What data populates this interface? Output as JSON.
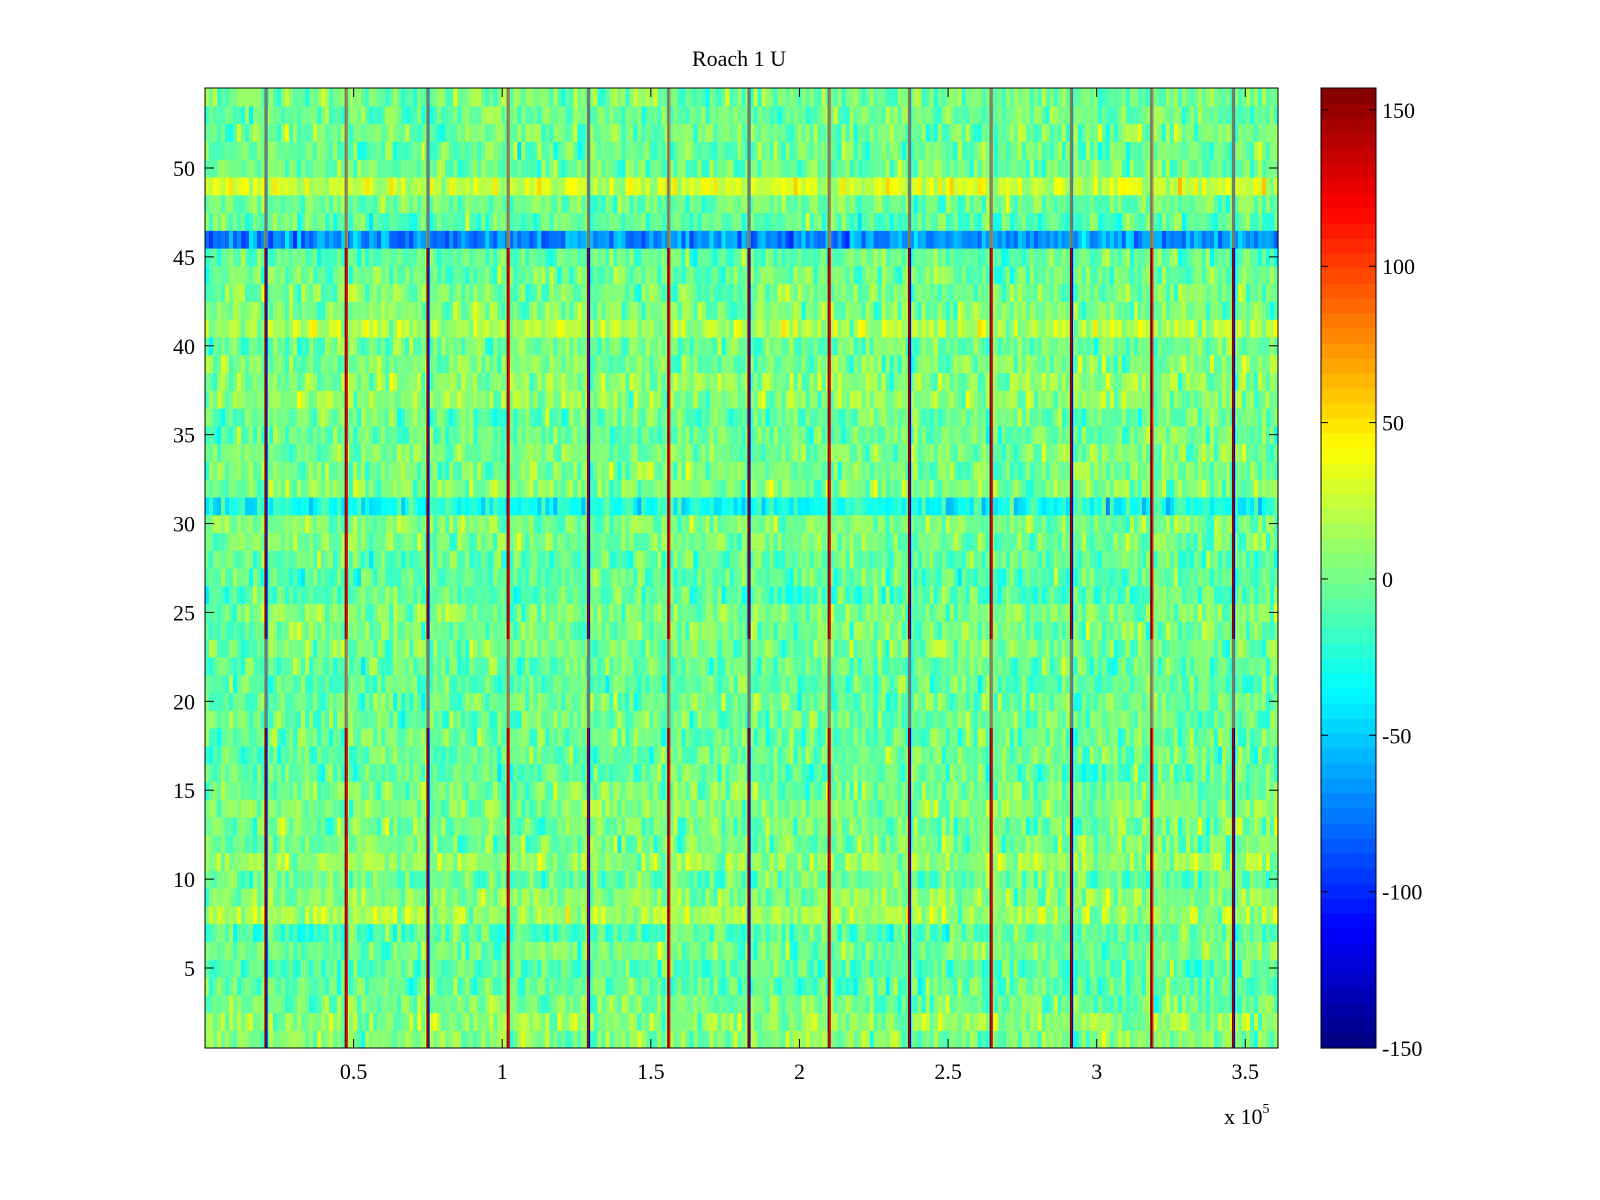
{
  "chart_data": {
    "type": "heatmap",
    "title": "Roach 1 U",
    "colormap": "jet",
    "x": {
      "range": [
        0,
        361000
      ],
      "ticks": [
        50000,
        100000,
        150000,
        200000,
        250000,
        300000,
        350000
      ],
      "tick_labels": [
        "0.5",
        "1",
        "1.5",
        "2",
        "2.5",
        "3",
        "3.5"
      ],
      "multiplier": {
        "base": "x 10",
        "exponent": "5"
      }
    },
    "y": {
      "range": [
        0.5,
        54.5
      ],
      "ticks": [
        5,
        10,
        15,
        20,
        25,
        30,
        35,
        40,
        45,
        50
      ],
      "tick_labels": [
        "5",
        "10",
        "15",
        "20",
        "25",
        "30",
        "35",
        "40",
        "45",
        "50"
      ]
    },
    "colorbar": {
      "range": [
        -150,
        157
      ],
      "ticks": [
        -150,
        -100,
        -50,
        0,
        50,
        100,
        150
      ],
      "tick_labels": [
        "-150",
        "-100",
        "-50",
        "0",
        "50",
        "100",
        "150"
      ]
    },
    "rows": 54,
    "background_value_mean": 0,
    "background_value_spread": 35,
    "spikes": {
      "x_positions": [
        20500,
        47500,
        75000,
        102000,
        129000,
        156000,
        183000,
        210000,
        237000,
        264500,
        291500,
        318500,
        346000
      ],
      "peak_value": 155,
      "trough_value": -150,
      "gaps_y": [
        [
          45.5,
          54.5
        ],
        [
          18.5,
          23.5
        ]
      ]
    },
    "row_offsets": [
      {
        "row": 46,
        "value": -60
      },
      {
        "row": 49,
        "value": 30
      },
      {
        "row": 31,
        "value": -25
      },
      {
        "row": 41,
        "value": 15
      },
      {
        "row": 8,
        "value": 15
      }
    ]
  }
}
